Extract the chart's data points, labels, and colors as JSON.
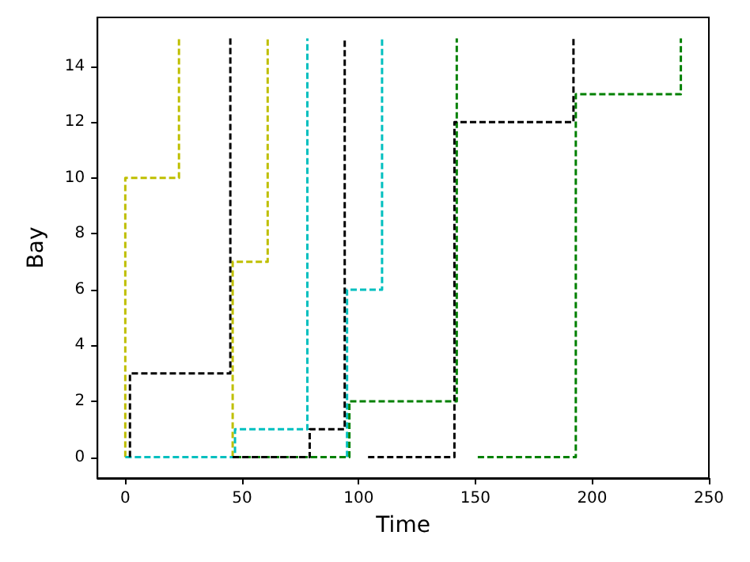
{
  "chart_data": {
    "type": "line",
    "xlabel": "Time",
    "ylabel": "Bay",
    "xlim": [
      -11.9,
      250
    ],
    "xticks": [
      0,
      50,
      100,
      150,
      200,
      250
    ],
    "ylim": [
      -0.75,
      15.75
    ],
    "yticks": [
      0,
      2,
      4,
      6,
      8,
      10,
      12,
      14
    ],
    "grid": false,
    "marker": "none",
    "line_style": "dashed",
    "series": [
      {
        "color": "#bfbf00",
        "x": [
          0,
          0,
          23,
          23
        ],
        "values": [
          0,
          10,
          10,
          15
        ]
      },
      {
        "color": "#bfbf00",
        "x": [
          46,
          46,
          61,
          61
        ],
        "values": [
          0,
          7,
          7,
          15
        ]
      },
      {
        "color": "#00bfbf",
        "x": [
          0,
          47,
          47,
          78,
          78
        ],
        "values": [
          0,
          0,
          1,
          1,
          15
        ]
      },
      {
        "color": "#00bfbf",
        "x": [
          95,
          95,
          110,
          110
        ],
        "values": [
          0,
          6,
          6,
          15
        ]
      },
      {
        "color": "#008000",
        "x": [
          47,
          96,
          96,
          142,
          142
        ],
        "values": [
          0,
          0,
          2,
          2,
          15
        ]
      },
      {
        "color": "#008000",
        "x": [
          151,
          193,
          193,
          238,
          238
        ],
        "values": [
          0,
          0,
          13,
          13,
          15
        ]
      },
      {
        "color": "#000000",
        "x": [
          2,
          2,
          45,
          45
        ],
        "values": [
          0,
          3,
          3,
          15
        ]
      },
      {
        "color": "#000000",
        "x": [
          46,
          79,
          79,
          94,
          94
        ],
        "values": [
          0,
          0,
          1,
          1,
          15
        ]
      },
      {
        "color": "#000000",
        "x": [
          104,
          141,
          141,
          192,
          192
        ],
        "values": [
          0,
          0,
          12,
          12,
          15
        ]
      }
    ]
  }
}
